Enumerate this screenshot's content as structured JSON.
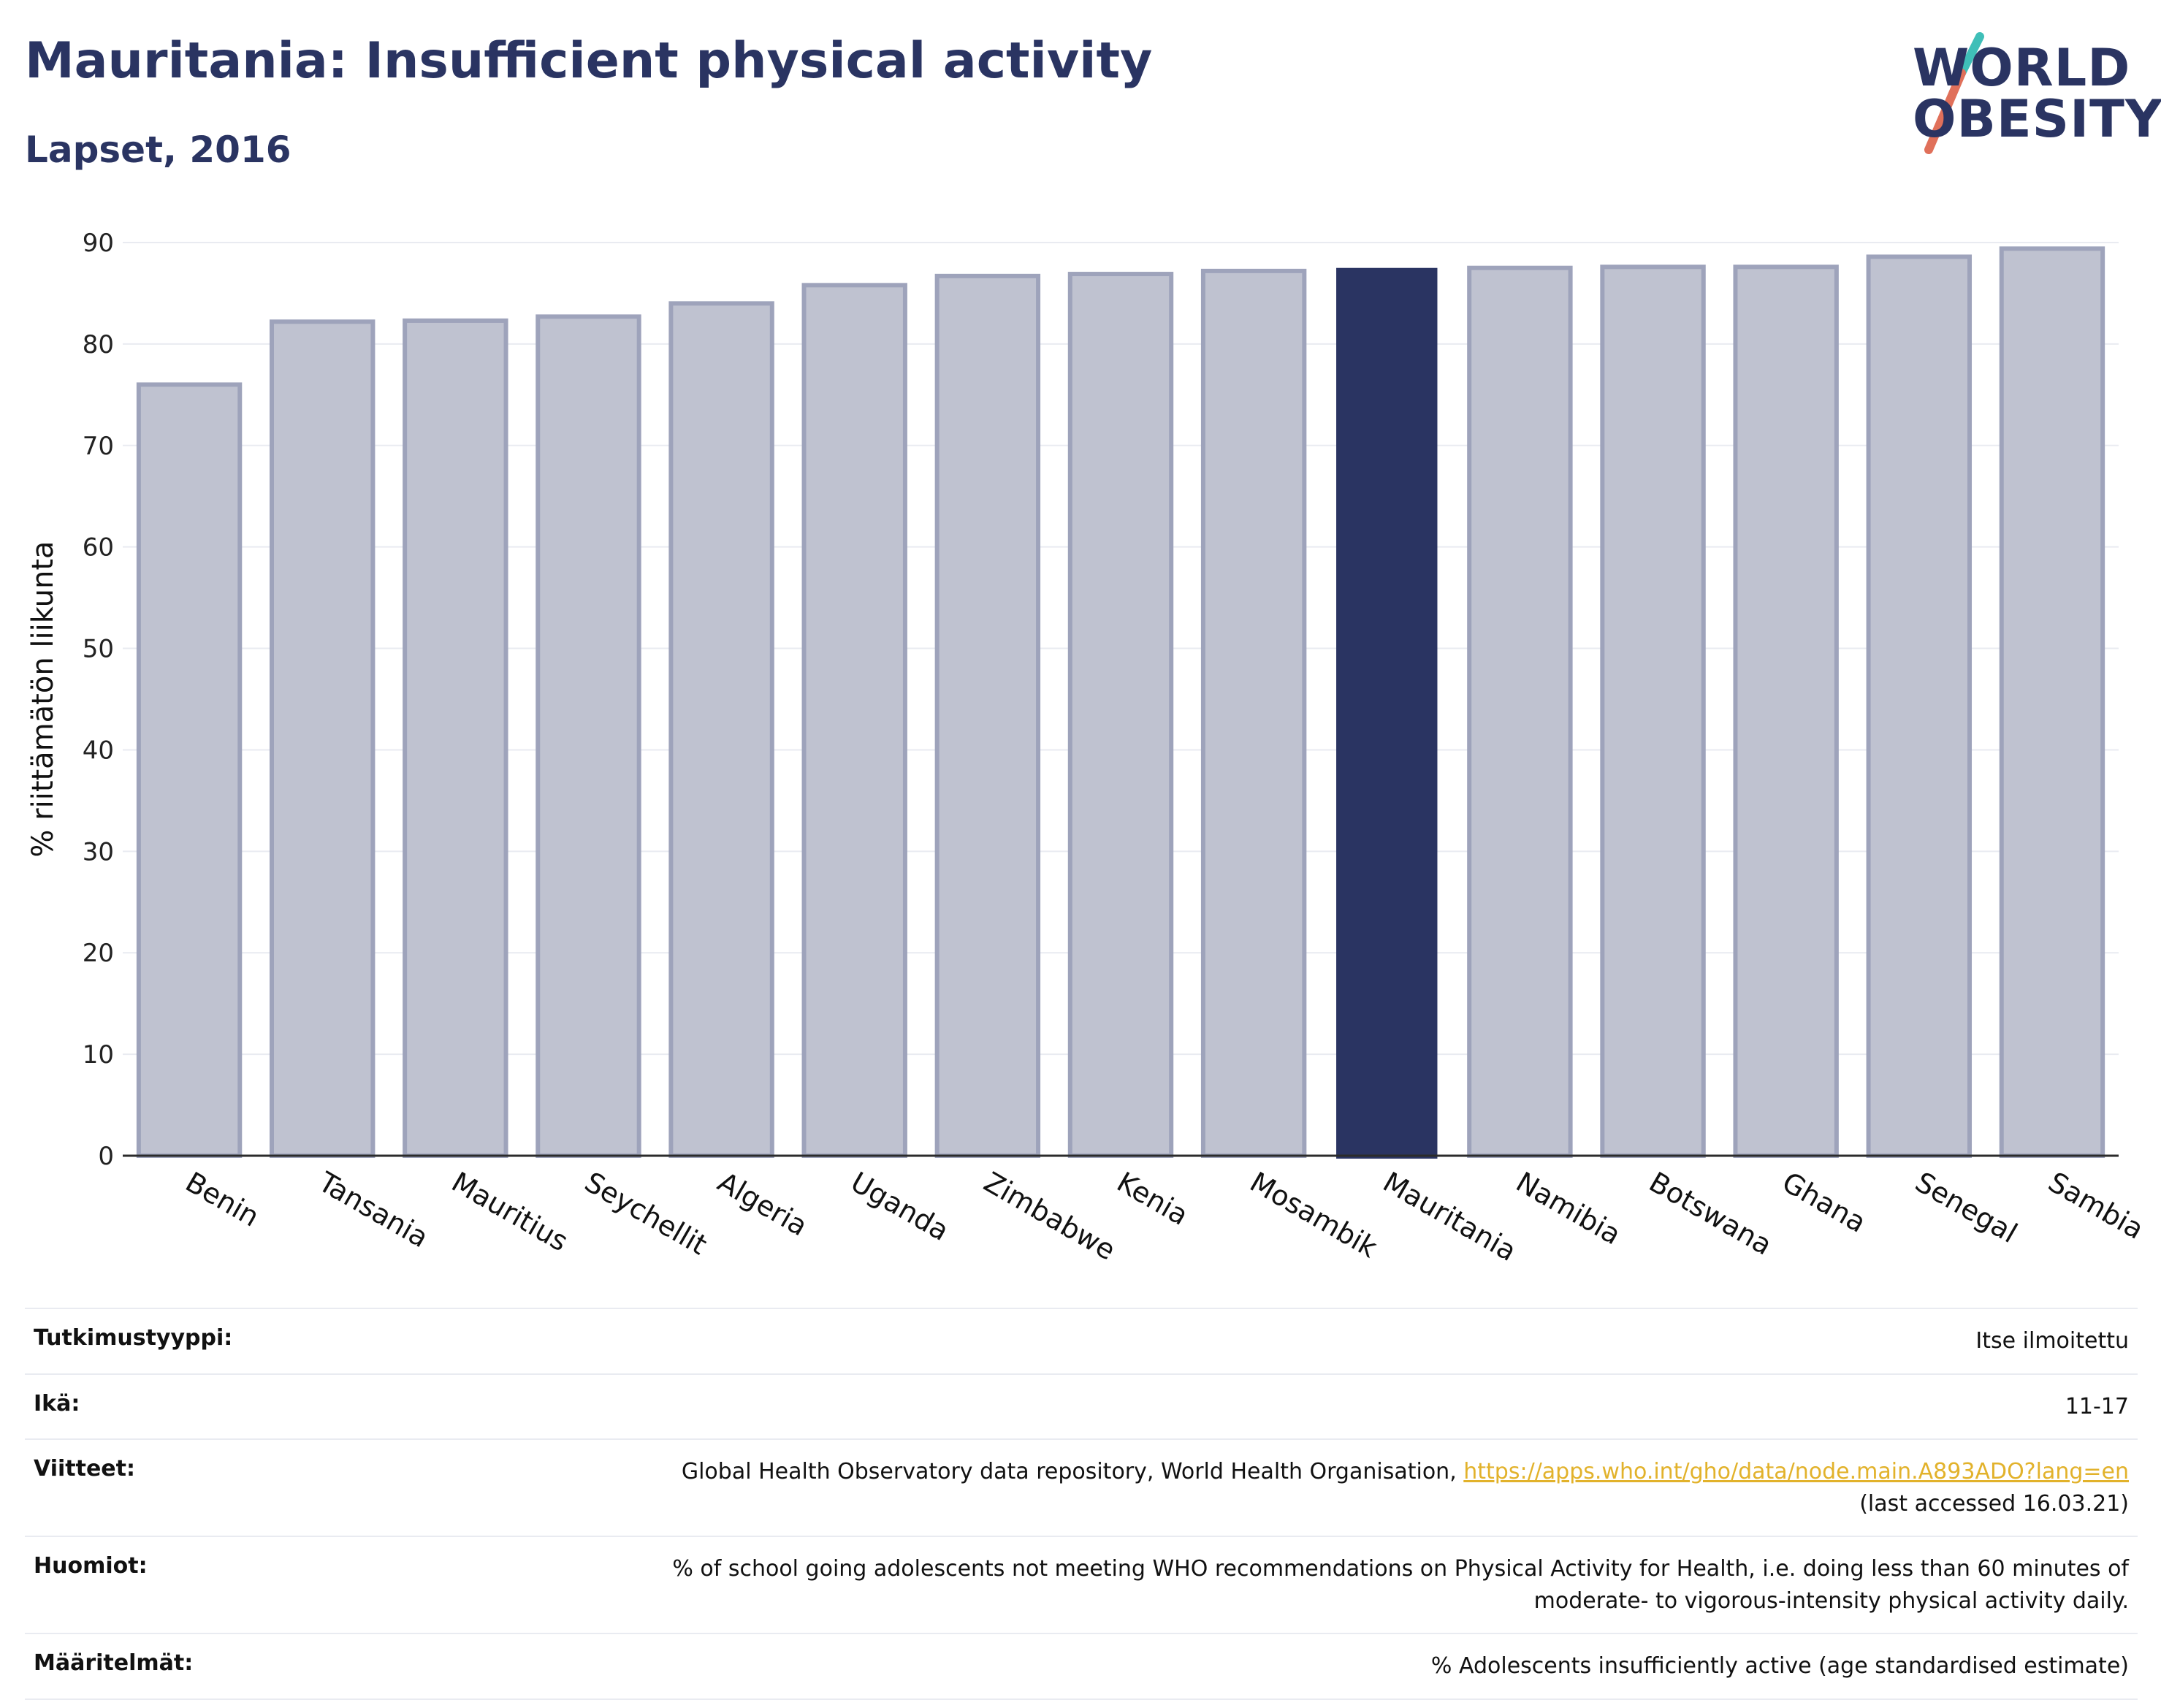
{
  "header": {
    "title": "Mauritania: Insufficient physical activity",
    "subtitle": "Lapset, 2016"
  },
  "logo": {
    "line1": "WORLD",
    "line2": "OBESITY",
    "accent_colors": [
      "#3fbfb8",
      "#e0705a"
    ]
  },
  "chart_data": {
    "type": "bar",
    "title": "",
    "xlabel": "",
    "ylabel": "% riittämätön liikunta",
    "ylim": [
      0,
      90
    ],
    "yticks": [
      0,
      10,
      20,
      30,
      40,
      50,
      60,
      70,
      80,
      90
    ],
    "grid": true,
    "highlight": "Mauritania",
    "colors": {
      "bar": "#bfc2d0",
      "bar_border": "#9ea3bb",
      "highlight": "#2a3462",
      "grid": "#e9ebf1",
      "axis": "#2b2b2b"
    },
    "categories": [
      "Benin",
      "Tansania",
      "Mauritius",
      "Seychellit",
      "Algeria",
      "Uganda",
      "Zimbabwe",
      "Kenia",
      "Mosambik",
      "Mauritania",
      "Namibia",
      "Botswana",
      "Ghana",
      "Senegal",
      "Sambia"
    ],
    "values": [
      76.0,
      82.2,
      82.3,
      82.7,
      84.0,
      85.8,
      86.7,
      86.9,
      87.2,
      87.5,
      87.5,
      87.6,
      87.6,
      88.6,
      89.4
    ]
  },
  "meta": {
    "rows": [
      {
        "label": "Tutkimustyyppi:",
        "value": "Itse ilmoitettu"
      },
      {
        "label": "Ikä:",
        "value": "11-17"
      },
      {
        "label": "Viitteet:",
        "value": "Global Health Observatory data repository, World Health Organisation, ",
        "link": "https://apps.who.int/gho/data/node.main.A893ADO?lang=en",
        "value2": "(last accessed 16.03.21)"
      },
      {
        "label": "Huomiot:",
        "value": "% of school going adolescents not meeting WHO recommendations on Physical Activity for Health, i.e. doing less than 60 minutes of",
        "value2": "moderate- to vigorous-intensity physical activity daily."
      },
      {
        "label": "Määritelmät:",
        "value": "% Adolescents insufficiently active (age standardised estimate)"
      }
    ]
  }
}
